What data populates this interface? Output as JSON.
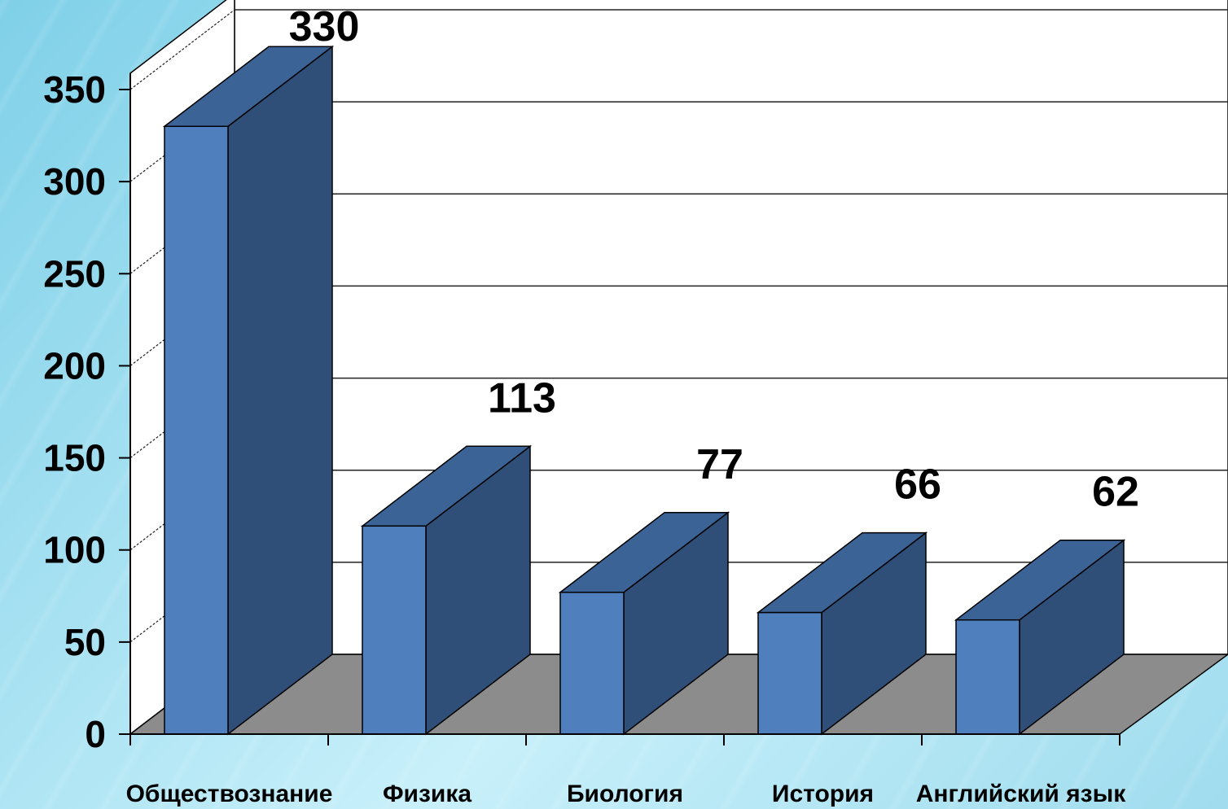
{
  "chart_data": {
    "type": "bar",
    "categories": [
      "Обществознание",
      "Физика",
      "Биология",
      "История",
      "Английский язык"
    ],
    "values": [
      330,
      113,
      77,
      66,
      62
    ],
    "data_labels": [
      "330",
      "113",
      "77",
      "66",
      "62"
    ],
    "ylim": [
      0,
      350
    ],
    "yticks": [
      "0",
      "50",
      "100",
      "150",
      "200",
      "250",
      "300",
      "350"
    ],
    "grid": true,
    "style": "3d",
    "colors": {
      "bar_front": "#4f7fbd",
      "bar_top": "#3c6396",
      "bar_side": "#2f4f78",
      "floor": "#8c8c8c",
      "wall": "#ffffff"
    }
  }
}
